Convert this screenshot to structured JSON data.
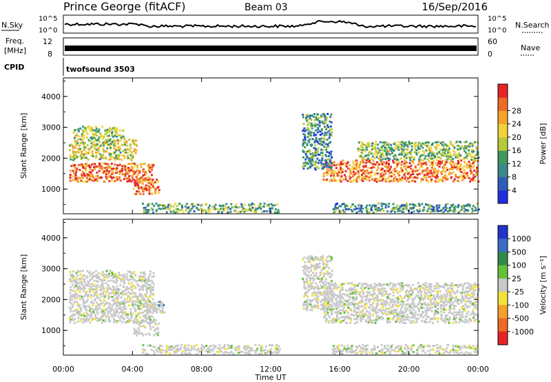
{
  "header": {
    "site": "Prince George (fitACF)",
    "beam": "Beam 03",
    "date": "16/Sep/2016"
  },
  "nsky_panel": {
    "left_label": "N.Sky",
    "right_label": "N.Search",
    "yticks": [
      "10^5",
      "10^0"
    ]
  },
  "freq_panel": {
    "left_label_1": "Freq.",
    "left_label_2": "[MHz]",
    "right_label": "Nave",
    "left_ticks": [
      "12",
      "8"
    ],
    "right_ticks": [
      "60",
      "0"
    ]
  },
  "cpid": {
    "label": "CPID",
    "value": "twofsound 3503"
  },
  "chart_data": [
    {
      "type": "heatmap",
      "name": "power",
      "ylabel": "Slant Range [km]",
      "xlabel": "Time UT",
      "ylim": [
        200,
        4600
      ],
      "yticks": [
        1000,
        2000,
        3000,
        4000
      ],
      "xticks": [
        "00:00",
        "04:00",
        "08:00",
        "12:00",
        "16:00",
        "20:00",
        "00:00"
      ],
      "colorbar": {
        "label": "Power [dB]",
        "ticks": [
          "4",
          "8",
          "12",
          "16",
          "20",
          "24",
          "28"
        ],
        "colors": [
          "#1f2fe0",
          "#2e5fb8",
          "#3a8a8a",
          "#3e9a5a",
          "#b7c93a",
          "#f2d23a",
          "#f4a52a",
          "#ee6a26",
          "#e42525"
        ]
      },
      "bands": [
        {
          "t0": 0.3,
          "t1": 5.2,
          "r0": 1200,
          "r1": 1800,
          "level": 0.85
        },
        {
          "t0": 0.3,
          "t1": 4.2,
          "r0": 1900,
          "r1": 2600,
          "level": 0.55
        },
        {
          "t0": 0.5,
          "t1": 3.5,
          "r0": 2600,
          "r1": 3000,
          "level": 0.45
        },
        {
          "t0": 4.0,
          "t1": 5.5,
          "r0": 800,
          "r1": 1300,
          "level": 0.8
        },
        {
          "t0": 4.5,
          "t1": 12.5,
          "r0": 200,
          "r1": 500,
          "level": 0.4
        },
        {
          "t0": 15.0,
          "t1": 24.0,
          "r0": 1200,
          "r1": 1900,
          "level": 0.8
        },
        {
          "t0": 17.0,
          "t1": 24.0,
          "r0": 1900,
          "r1": 2500,
          "level": 0.45
        },
        {
          "t0": 13.8,
          "t1": 15.5,
          "r0": 1600,
          "r1": 3400,
          "level": 0.3
        },
        {
          "t0": 15.5,
          "t1": 24.0,
          "r0": 200,
          "r1": 500,
          "level": 0.3
        }
      ]
    },
    {
      "type": "heatmap",
      "name": "velocity",
      "ylabel": "Slant Range [km]",
      "xlabel": "Time UT",
      "ylim": [
        200,
        4600
      ],
      "yticks": [
        1000,
        2000,
        3000,
        4000
      ],
      "xticks": [
        "00:00",
        "04:00",
        "08:00",
        "12:00",
        "16:00",
        "20:00",
        "00:00"
      ],
      "colorbar": {
        "label": "Velocity [m s⁻¹]",
        "ticks": [
          "1000",
          "500",
          "100",
          "25",
          "-25",
          "-100",
          "-500",
          "-1000"
        ],
        "colors": [
          "#2233cc",
          "#3a6cc4",
          "#2f8a4a",
          "#66c03a",
          "#c8c8c8",
          "#f3e23a",
          "#f4a02a",
          "#ee6a26",
          "#e42525"
        ]
      },
      "bands": [
        {
          "t0": 0.3,
          "t1": 5.2,
          "r0": 1200,
          "r1": 2900,
          "level": 0.5
        },
        {
          "t0": 4.0,
          "t1": 5.5,
          "r0": 800,
          "r1": 1300,
          "level": 0.5
        },
        {
          "t0": 4.6,
          "t1": 5.8,
          "r0": 1500,
          "r1": 1900,
          "level": 0.8
        },
        {
          "t0": 4.5,
          "t1": 12.5,
          "r0": 200,
          "r1": 500,
          "level": 0.35
        },
        {
          "t0": 15.0,
          "t1": 24.0,
          "r0": 1200,
          "r1": 2500,
          "level": 0.5
        },
        {
          "t0": 13.8,
          "t1": 15.5,
          "r0": 1600,
          "r1": 3400,
          "level": 0.5
        },
        {
          "t0": 15.5,
          "t1": 24.0,
          "r0": 200,
          "r1": 500,
          "level": 0.6
        }
      ]
    }
  ]
}
